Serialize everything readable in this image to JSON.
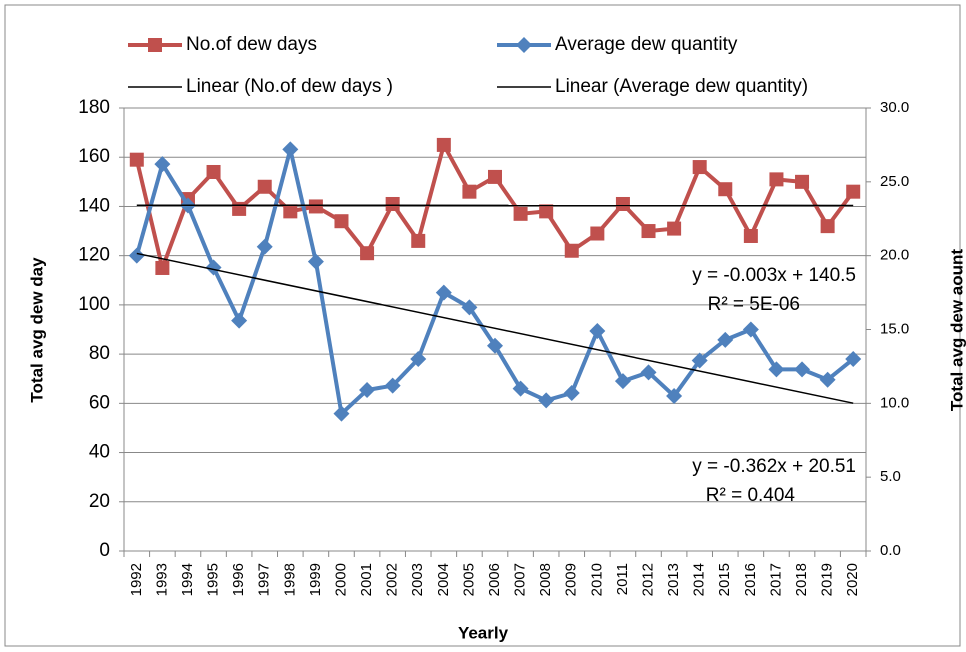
{
  "chart_data": {
    "type": "line",
    "x_label": "Yearly",
    "y_label": "Total avg dew day",
    "y2_label": "Total avg dew aount",
    "categories": [
      "1992",
      "1993",
      "1994",
      "1995",
      "1996",
      "1997",
      "1998",
      "1999",
      "2000",
      "2001",
      "2002",
      "2003",
      "2004",
      "2005",
      "2006",
      "2007",
      "2008",
      "2009",
      "2010",
      "2011",
      "2012",
      "2013",
      "2014",
      "2015",
      "2016",
      "2017",
      "2018",
      "2019",
      "2020"
    ],
    "series": [
      {
        "name": "No.of dew days",
        "color": "#c0504d",
        "marker": "square",
        "values": [
          159,
          115,
          143,
          154,
          139,
          148,
          138,
          140,
          134,
          121,
          141,
          126,
          165,
          146,
          152,
          137,
          138,
          122,
          129,
          141,
          130,
          131,
          156,
          147,
          128,
          151,
          150,
          132,
          146
        ]
      },
      {
        "name": "Average dew quantity",
        "color": "#4f81bd",
        "marker": "diamond",
        "axis": "y2",
        "values": [
          20.0,
          26.2,
          23.4,
          19.2,
          15.6,
          20.6,
          27.2,
          19.6,
          9.3,
          10.9,
          11.2,
          13.0,
          17.5,
          16.5,
          13.9,
          11.0,
          10.2,
          10.7,
          14.9,
          11.5,
          12.1,
          10.5,
          12.9,
          14.3,
          15.0,
          12.3,
          12.3,
          11.6,
          13.0
        ]
      }
    ],
    "trendlines": [
      {
        "name": "Linear (No.of dew days )",
        "color": "#000000",
        "values": [
          140.5,
          140.4
        ]
      },
      {
        "name": "Linear (Average dew quantity)",
        "color": "#000000",
        "axis": "y2",
        "values": [
          20.15,
          10.01
        ]
      }
    ],
    "annotations": [
      "y = -0.003x + 140.5",
      "R² = 5E-06",
      "y = -0.362x + 20.51",
      "R² = 0.404"
    ],
    "ylim": [
      0,
      180
    ],
    "yticks": [
      0,
      20,
      40,
      60,
      80,
      100,
      120,
      140,
      160,
      180
    ],
    "y2lim": [
      0,
      30
    ],
    "y2ticks": [
      {
        "value": 0,
        "label": "0.0"
      },
      {
        "value": 5,
        "label": "5.0"
      },
      {
        "value": 10,
        "label": "10.0"
      },
      {
        "value": 15,
        "label": "15.0"
      },
      {
        "value": 20,
        "label": "20.0"
      },
      {
        "value": 25,
        "label": "25.0"
      },
      {
        "value": 30,
        "label": "30.0"
      }
    ],
    "grid": true
  }
}
